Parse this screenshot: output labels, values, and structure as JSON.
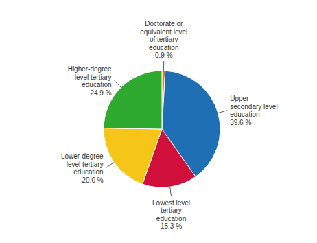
{
  "chart_data": {
    "type": "pie",
    "categories": [
      "Doctorate or\nequivalent level\nof tertiary\neducation",
      "Upper\nsecondary level\neducation",
      "Lowest level\ntertiary\neducation",
      "Lower-degree\nlevel tertiary\neducation",
      "Higher-degree\nlevel tertiary\neducation"
    ],
    "values": [
      0.9,
      39.6,
      15.3,
      20.0,
      24.9
    ],
    "value_labels": [
      "0.9 %",
      "39.6 %",
      "15.3 %",
      "20.0 %",
      "24.9 %"
    ],
    "colors": [
      "#E87722",
      "#1F6FB4",
      "#D0103A",
      "#F5C518",
      "#2EAA2E"
    ],
    "data_labels": true
  }
}
